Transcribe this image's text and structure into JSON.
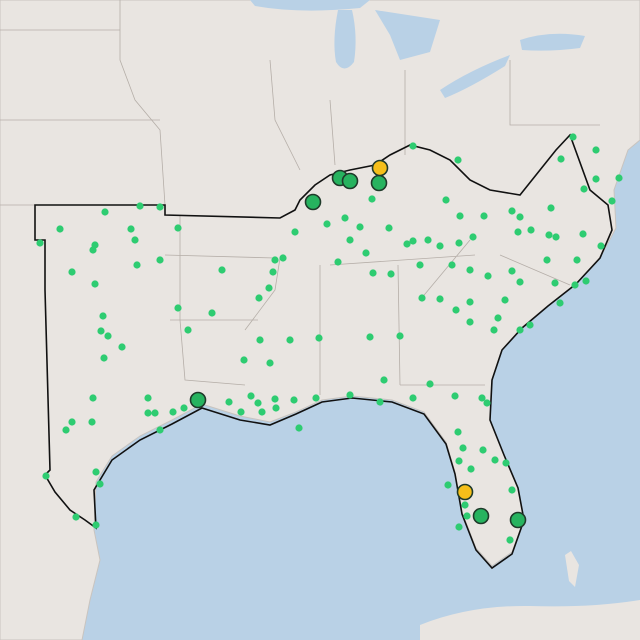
{
  "markers": {
    "small_color": "#2ecc71",
    "large_color": "#27b35f",
    "highlight_color": "#f5bf1a",
    "outline_color": "#1f3a2a"
  }
}
